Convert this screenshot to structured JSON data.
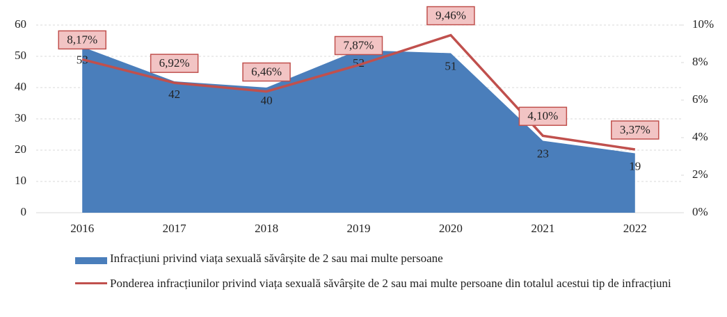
{
  "chart_data": {
    "type": "area_line",
    "categories": [
      "2016",
      "2017",
      "2018",
      "2019",
      "2020",
      "2021",
      "2022"
    ],
    "series": [
      {
        "name": "Infracțiuni privind viața sexuală săvârșite de 2 sau mai multe persoane",
        "color": "#4a7ebb",
        "type": "area",
        "values": [
          53,
          42,
          40,
          52,
          51,
          23,
          19
        ]
      },
      {
        "name": "Ponderea infracțiunilor privind viața sexuală săvârșite de 2 sau mai multe persoane din totalul acestui tip de infracțiuni",
        "color": "#c0504d",
        "type": "line",
        "axis": "y2",
        "values": [
          8.17,
          6.92,
          6.46,
          7.87,
          9.46,
          4.1,
          3.37
        ],
        "value_labels": [
          "8,17%",
          "6,92%",
          "6,46%",
          "7,87%",
          "9,46%",
          "4,10%",
          "3,37%"
        ]
      }
    ],
    "ylim": [
      0,
      60
    ],
    "yticks": [
      0,
      10,
      20,
      30,
      40,
      50,
      60
    ],
    "y2lim": [
      0,
      10
    ],
    "y2ticks": [
      {
        "value": 0,
        "label": "0%"
      },
      {
        "value": 2,
        "label": "2%"
      },
      {
        "value": 4,
        "label": "4%"
      },
      {
        "value": 6,
        "label": "6%"
      },
      {
        "value": 8,
        "label": "8%"
      },
      {
        "value": 10,
        "label": "10%"
      }
    ],
    "grid": true
  }
}
